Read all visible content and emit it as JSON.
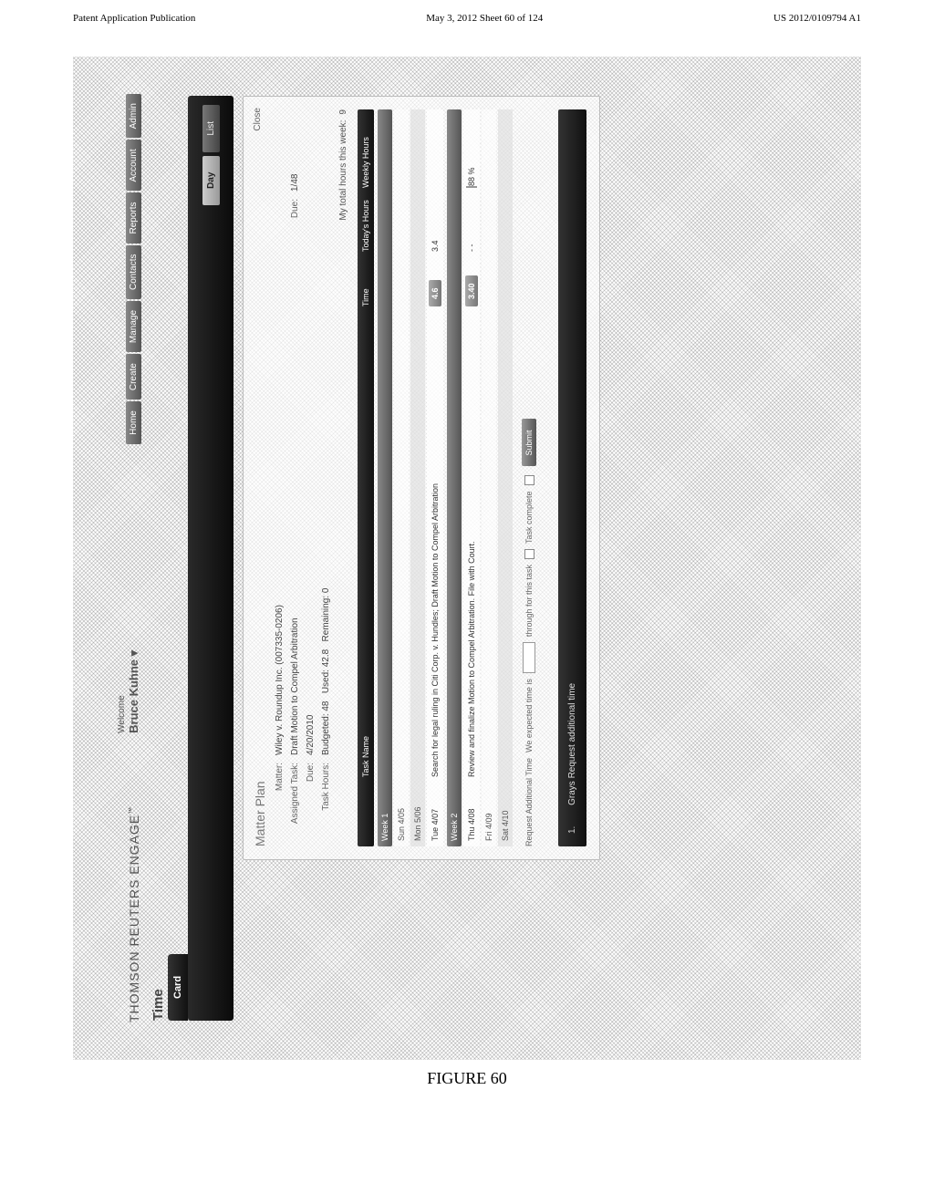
{
  "doc_header": {
    "left": "Patent Application Publication",
    "center": "May 3, 2012  Sheet 60 of 124",
    "right": "US 2012/0109794 A1"
  },
  "figure_label": "FIGURE 60",
  "app": {
    "brand": "THOMSON REUTERS ENGAGE",
    "trademark": "™",
    "welcome": {
      "label": "Welcome",
      "name": "Bruce Kuhne",
      "caret": "▾"
    },
    "topnav": [
      "Home",
      "Create",
      "Manage",
      "Contacts",
      "Reports",
      "Account",
      "Admin"
    ],
    "page_title": "Time",
    "active_tab": "Card",
    "toolbar_tabs": {
      "selected": "Day",
      "other": "List"
    },
    "matter_plan": {
      "title": "Matter Plan",
      "close": "Close",
      "rows": {
        "matter_label": "Matter:",
        "matter_value": "Wiley v. Roundup Inc. (007335-0206)",
        "task_label": "Assigned Task:",
        "task_value": "Draft Motion to Compel Arbitration",
        "due_label": "Due:",
        "due_value": "4/20/2010",
        "due_label2": "Due:",
        "due_value2": "1/48",
        "hours_label": "Task Hours:",
        "budgeted": "Budgeted: 48",
        "used": "Used: 42.8",
        "remaining": "Remaining: 0"
      },
      "total_week": "My total hours this week:",
      "total_week_val": "9"
    },
    "grid": {
      "headers": [
        "",
        "Task Name",
        "Time",
        "Today's Hours",
        "Weekly Hours"
      ],
      "week1": {
        "head": "Week 1",
        "days": [
          "Sun 4/05",
          "Mon 5/06",
          "Tue 4/07"
        ],
        "entry": {
          "day": "Tue 4/07",
          "task": "Search for legal ruling in Citi Corp. v. Hundles; Draft Motion to Compel Arbitration",
          "time": "4.6",
          "today": "3.4"
        }
      },
      "week2": {
        "head": "Week 2",
        "days": [
          "Thu 4/08",
          "Fri 4/09",
          "Sat 4/10"
        ],
        "entry": {
          "day": "Thu 4/08",
          "task": "Review and finalize Motion to Compel Arbitration. File with Court.",
          "time": "3.40",
          "today": "- -",
          "weekly": "88",
          "pct": "%"
        }
      }
    },
    "request_line": {
      "label": "Request Additional Time",
      "note": "We expected time is",
      "note2": "through for this task",
      "task_complete": "Task complete",
      "submit": "Submit"
    },
    "req_extra": {
      "num": "1.",
      "text": "Grays Request additional time"
    }
  }
}
